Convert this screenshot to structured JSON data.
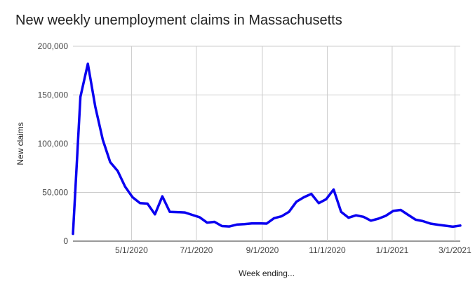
{
  "chart_data": {
    "type": "line",
    "title": "New weekly unemployment claims in Massachusetts",
    "xlabel": "Week ending...",
    "ylabel": "New claims",
    "ylim": [
      0,
      200000
    ],
    "y_ticks": [
      0,
      50000,
      100000,
      150000,
      200000
    ],
    "y_tick_labels": [
      "0",
      "50,000",
      "100,000",
      "150,000",
      "200,000"
    ],
    "x_ticks": [
      "2020-05-01",
      "2020-07-01",
      "2020-09-01",
      "2020-11-01",
      "2021-01-01",
      "2021-03-01"
    ],
    "x_tick_labels": [
      "5/1/2020",
      "7/1/2020",
      "9/1/2020",
      "11/1/2020",
      "1/1/2021",
      "3/1/2021"
    ],
    "grid": true,
    "line_color": "#0a00f0",
    "series": [
      {
        "x": [
          "2020-03-07",
          "2020-03-14",
          "2020-03-21",
          "2020-03-28",
          "2020-04-04",
          "2020-04-11",
          "2020-04-18",
          "2020-04-25",
          "2020-05-02",
          "2020-05-09",
          "2020-05-16",
          "2020-05-23",
          "2020-05-30",
          "2020-06-06",
          "2020-06-13",
          "2020-06-20",
          "2020-06-27",
          "2020-07-04",
          "2020-07-11",
          "2020-07-18",
          "2020-07-25",
          "2020-08-01",
          "2020-08-08",
          "2020-08-15",
          "2020-08-22",
          "2020-08-29",
          "2020-09-05",
          "2020-09-12",
          "2020-09-19",
          "2020-09-26",
          "2020-10-03",
          "2020-10-10",
          "2020-10-17",
          "2020-10-24",
          "2020-10-31",
          "2020-11-07",
          "2020-11-14",
          "2020-11-21",
          "2020-11-28",
          "2020-12-05",
          "2020-12-12",
          "2020-12-19",
          "2020-12-26",
          "2021-01-02",
          "2021-01-09",
          "2021-01-16",
          "2021-01-23",
          "2021-01-30",
          "2021-02-06",
          "2021-02-13",
          "2021-02-20",
          "2021-02-27",
          "2021-03-06"
        ],
        "values": [
          7500,
          148000,
          182000,
          138000,
          104000,
          81000,
          72000,
          56000,
          45000,
          39000,
          38500,
          27500,
          46000,
          30000,
          29800,
          29400,
          27000,
          24500,
          19000,
          19800,
          15500,
          15000,
          17000,
          17500,
          18200,
          18300,
          18000,
          23500,
          25500,
          30000,
          40500,
          45000,
          48500,
          39000,
          43000,
          53000,
          30000,
          24000,
          26500,
          25000,
          21000,
          23000,
          26000,
          31000,
          32000,
          27000,
          22000,
          20500,
          18000,
          16800,
          15800,
          14800,
          16000
        ]
      }
    ]
  }
}
